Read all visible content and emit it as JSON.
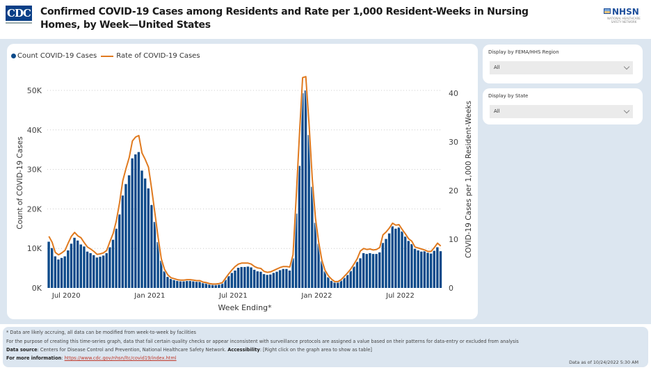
{
  "header": {
    "logo_text": "CDC",
    "title": "Confirmed COVID-19 Cases among Residents and Rate per 1,000 Resident-Weeks in Nursing Homes, by Week—United States",
    "nhsn_logo_text": "NHSN",
    "nhsn_sub": "NATIONAL HEALTHCARE SAFETY NETWORK"
  },
  "filters": [
    {
      "label": "Display by FEMA/HHS Region",
      "value": "All"
    },
    {
      "label": "Display by State",
      "value": "All"
    }
  ],
  "colors": {
    "bars": "#0d4a8a",
    "line": "#e07a1f",
    "background": "#dce6f0"
  },
  "chart_data": {
    "type": "bar",
    "title": "Confirmed COVID-19 Cases among Residents and Rate per 1,000 Resident-Weeks in Nursing Homes, by Week",
    "xlabel": "Week Ending*",
    "ylabel": "Count of COVID-19 Cases",
    "y2label": "COVID-19 Cases per 1,000 Resident-Weeks",
    "legend": [
      {
        "name": "Count COVID-19 Cases",
        "marker": "dot"
      },
      {
        "name": "Rate of COVID-19 Cases",
        "marker": "line"
      }
    ],
    "legend_position": "top-left",
    "ylim": [
      0,
      52000
    ],
    "y2lim": [
      0,
      44
    ],
    "yticks": [
      "0K",
      "10K",
      "20K",
      "30K",
      "40K",
      "50K"
    ],
    "yticks_values": [
      0,
      10000,
      20000,
      30000,
      40000,
      50000
    ],
    "y2ticks": [
      "0",
      "10",
      "20",
      "30",
      "40"
    ],
    "y2ticks_values": [
      0,
      10,
      20,
      30,
      40
    ],
    "xticks": [
      "Jul 2020",
      "Jan 2021",
      "Jul 2021",
      "Jan 2022",
      "Jul 2022"
    ],
    "xticks_week_index": [
      2,
      28,
      54,
      80,
      106
    ],
    "grid": true,
    "series": [
      {
        "name": "Count COVID-19 Cases",
        "type": "bar",
        "axis": "left",
        "values": [
          11700,
          10100,
          8000,
          7200,
          7600,
          8000,
          9500,
          11200,
          12700,
          12000,
          11000,
          10500,
          9200,
          8800,
          8300,
          7700,
          7900,
          8200,
          8800,
          10300,
          12200,
          15000,
          18600,
          23400,
          26300,
          28500,
          32800,
          33800,
          34400,
          29700,
          27700,
          25200,
          21000,
          16700,
          11600,
          6900,
          4200,
          2800,
          2300,
          2000,
          1800,
          1700,
          1700,
          1800,
          1800,
          1700,
          1600,
          1600,
          1300,
          1200,
          1000,
          900,
          800,
          900,
          1200,
          2100,
          3000,
          3800,
          4400,
          5100,
          5300,
          5300,
          5400,
          5200,
          4600,
          4200,
          4100,
          3500,
          3300,
          3400,
          3800,
          4100,
          4500,
          4800,
          4800,
          4400,
          7500,
          18800,
          30900,
          49300,
          50000,
          38700,
          25600,
          16500,
          11200,
          6800,
          4200,
          2700,
          1800,
          1400,
          1500,
          1900,
          2600,
          3300,
          4300,
          5400,
          6600,
          7500,
          8800,
          8600,
          8800,
          8600,
          8600,
          9000,
          11400,
          12400,
          13800,
          15600,
          15000,
          15300,
          14300,
          13000,
          11900,
          11100,
          9900,
          9500,
          9200,
          9300,
          8900,
          8700,
          9400,
          10300,
          9300
        ],
        "color": "#0d4a8a"
      },
      {
        "name": "Rate of COVID-19 Cases",
        "type": "line",
        "axis": "right",
        "values": [
          10.6,
          9.4,
          7.3,
          6.8,
          7.2,
          7.7,
          9.2,
          10.6,
          11.4,
          10.7,
          10.3,
          9.3,
          8.4,
          8.0,
          7.5,
          6.9,
          7.0,
          7.2,
          7.7,
          9.5,
          11.2,
          13.8,
          17.5,
          22.0,
          24.5,
          26.8,
          30.2,
          31.0,
          31.3,
          27.7,
          26.4,
          24.8,
          20.3,
          15.4,
          10.4,
          6.0,
          3.8,
          2.7,
          2.1,
          1.9,
          1.7,
          1.6,
          1.6,
          1.7,
          1.7,
          1.6,
          1.5,
          1.5,
          1.2,
          1.1,
          0.9,
          0.8,
          0.8,
          0.9,
          1.1,
          2.0,
          2.9,
          3.7,
          4.4,
          4.9,
          5.1,
          5.1,
          5.1,
          4.9,
          4.4,
          4.1,
          4.0,
          3.4,
          3.2,
          3.3,
          3.6,
          3.9,
          4.2,
          4.4,
          4.4,
          4.3,
          6.8,
          18.7,
          31.4,
          43.2,
          43.4,
          33.6,
          22.4,
          14.3,
          9.4,
          5.7,
          3.6,
          2.5,
          1.8,
          1.3,
          1.3,
          1.7,
          2.4,
          3.1,
          3.9,
          4.9,
          6.0,
          7.6,
          8.1,
          7.9,
          8.0,
          7.8,
          7.9,
          8.3,
          10.9,
          11.5,
          12.3,
          13.3,
          12.9,
          13.0,
          12.0,
          11.1,
          10.1,
          9.6,
          8.4,
          8.2,
          8.0,
          7.8,
          7.5,
          7.5,
          8.3,
          9.2,
          8.6
        ],
        "color": "#e07a1f"
      }
    ]
  },
  "footer": {
    "line1": "* Data are likely accruing, all data can be modified from week-to-week by facilities",
    "line2": "For the purpose of creating this time-series graph, data that fail certain quality checks or appear inconsistent with surveillance protocols are assigned a value based on their patterns for data-entry or excluded from analysis",
    "source_label": "Data source",
    "source_text": ": Centers for Disease Control and Prevention, National Healthcare Safety Network. ",
    "accessibility_label": "Accessibility",
    "accessibility_text": ": [Right click on the graph area to show as table]",
    "info_label": "For more information",
    "info_sep": ": ",
    "info_link": "https://www.cdc.gov/nhsn/ltc/covid19/index.html",
    "data_as_of": "Data as of 10/24/2022 5:30 AM"
  }
}
